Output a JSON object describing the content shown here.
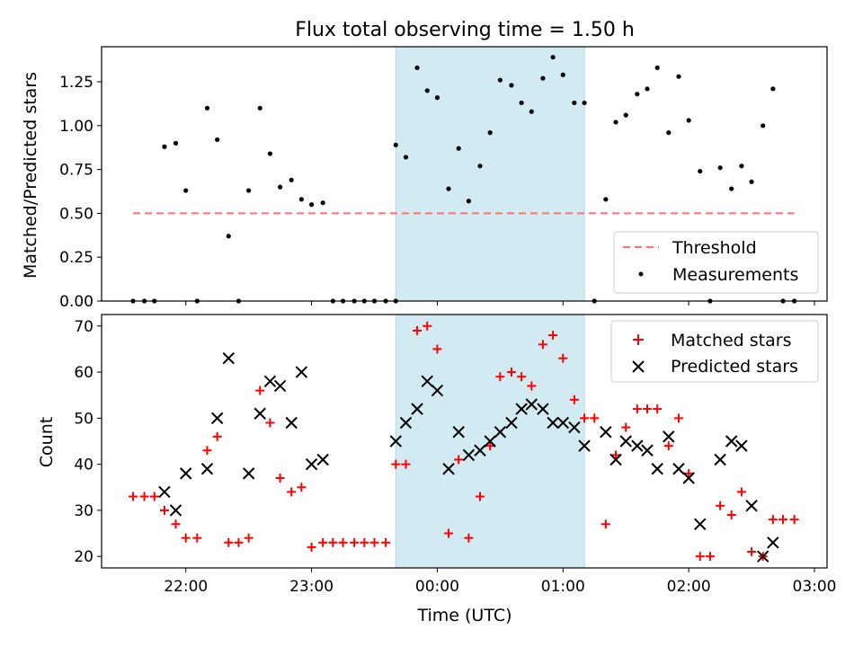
{
  "figure": {
    "title": "Flux total observing time = 1.50 h",
    "highlight_color": "#add8e6"
  },
  "chart_data": [
    {
      "type": "scatter",
      "panel": "top",
      "ylabel": "Matched/Predicted stars",
      "xlim_hours": [
        21.33,
        27.1
      ],
      "ylim": [
        0,
        1.45
      ],
      "x_ticks": [
        22,
        23,
        24,
        25,
        26,
        27
      ],
      "y_ticks": [
        0.0,
        0.25,
        0.5,
        0.75,
        1.0,
        1.25
      ],
      "y_tick_labels": [
        "0.00",
        "0.25",
        "0.50",
        "0.75",
        "1.00",
        "1.25"
      ],
      "highlight_span": [
        23.67,
        25.17
      ],
      "threshold": {
        "name": "Threshold",
        "value": 0.5,
        "x_range": [
          21.58,
          26.84
        ],
        "color": "#ff7070"
      },
      "legend": {
        "position": "lower right",
        "entries": [
          "Threshold",
          "Measurements"
        ]
      },
      "series": [
        {
          "name": "Measurements",
          "color": "#000000",
          "points": [
            [
              21.58,
              0
            ],
            [
              21.67,
              0
            ],
            [
              21.75,
              0
            ],
            [
              21.83,
              0.88
            ],
            [
              21.92,
              0.9
            ],
            [
              22.0,
              0.63
            ],
            [
              22.09,
              0
            ],
            [
              22.17,
              1.1
            ],
            [
              22.25,
              0.92
            ],
            [
              22.34,
              0.37
            ],
            [
              22.42,
              0
            ],
            [
              22.5,
              0.63
            ],
            [
              22.59,
              1.1
            ],
            [
              22.67,
              0.84
            ],
            [
              22.75,
              0.65
            ],
            [
              22.84,
              0.69
            ],
            [
              22.92,
              0.58
            ],
            [
              23.0,
              0.55
            ],
            [
              23.09,
              0.56
            ],
            [
              23.17,
              0
            ],
            [
              23.25,
              0
            ],
            [
              23.34,
              0
            ],
            [
              23.42,
              0
            ],
            [
              23.5,
              0
            ],
            [
              23.59,
              0
            ],
            [
              23.67,
              0
            ],
            [
              23.67,
              0.89
            ],
            [
              23.75,
              0.82
            ],
            [
              23.84,
              1.33
            ],
            [
              23.92,
              1.2
            ],
            [
              24.0,
              1.16
            ],
            [
              24.09,
              0.64
            ],
            [
              24.17,
              0.87
            ],
            [
              24.25,
              0.57
            ],
            [
              24.34,
              0.77
            ],
            [
              24.42,
              0.96
            ],
            [
              24.5,
              1.26
            ],
            [
              24.59,
              1.23
            ],
            [
              24.67,
              1.13
            ],
            [
              24.75,
              1.08
            ],
            [
              24.84,
              1.27
            ],
            [
              24.92,
              1.39
            ],
            [
              25.0,
              1.29
            ],
            [
              25.09,
              1.13
            ],
            [
              25.17,
              1.13
            ],
            [
              25.25,
              0
            ],
            [
              25.34,
              0.58
            ],
            [
              25.42,
              1.02
            ],
            [
              25.5,
              1.06
            ],
            [
              25.59,
              1.18
            ],
            [
              25.67,
              1.21
            ],
            [
              25.75,
              1.33
            ],
            [
              25.84,
              0.96
            ],
            [
              25.92,
              1.28
            ],
            [
              26.0,
              1.03
            ],
            [
              26.09,
              0.74
            ],
            [
              26.17,
              0
            ],
            [
              26.25,
              0.76
            ],
            [
              26.34,
              0.64
            ],
            [
              26.42,
              0.77
            ],
            [
              26.5,
              0.68
            ],
            [
              26.59,
              1.0
            ],
            [
              26.67,
              1.21
            ],
            [
              26.75,
              0
            ],
            [
              26.84,
              0
            ]
          ]
        }
      ]
    },
    {
      "type": "scatter",
      "panel": "bottom",
      "xlabel": "Time (UTC)",
      "ylabel": "Count",
      "xlim_hours": [
        21.33,
        27.1
      ],
      "ylim": [
        17.5,
        72.5
      ],
      "x_ticks": [
        22,
        23,
        24,
        25,
        26,
        27
      ],
      "x_tick_labels": [
        "22:00",
        "23:00",
        "00:00",
        "01:00",
        "02:00",
        "03:00"
      ],
      "y_ticks": [
        20,
        30,
        40,
        50,
        60,
        70
      ],
      "y_tick_labels": [
        "20",
        "30",
        "40",
        "50",
        "60",
        "70"
      ],
      "highlight_span": [
        23.67,
        25.17
      ],
      "legend": {
        "position": "upper right",
        "entries": [
          "Matched stars",
          "Predicted stars"
        ]
      },
      "series": [
        {
          "name": "Matched stars",
          "marker": "plus",
          "color": "#ff0000",
          "points": [
            [
              21.58,
              33
            ],
            [
              21.67,
              33
            ],
            [
              21.75,
              33
            ],
            [
              21.83,
              30
            ],
            [
              21.92,
              27
            ],
            [
              22.0,
              24
            ],
            [
              22.09,
              24
            ],
            [
              22.17,
              43
            ],
            [
              22.25,
              46
            ],
            [
              22.34,
              23
            ],
            [
              22.42,
              23
            ],
            [
              22.5,
              24
            ],
            [
              22.59,
              56
            ],
            [
              22.67,
              49
            ],
            [
              22.75,
              37
            ],
            [
              22.84,
              34
            ],
            [
              22.92,
              35
            ],
            [
              23.0,
              22
            ],
            [
              23.09,
              23
            ],
            [
              23.17,
              23
            ],
            [
              23.25,
              23
            ],
            [
              23.34,
              23
            ],
            [
              23.42,
              23
            ],
            [
              23.5,
              23
            ],
            [
              23.59,
              23
            ],
            [
              23.67,
              40
            ],
            [
              23.75,
              40
            ],
            [
              23.84,
              69
            ],
            [
              23.92,
              70
            ],
            [
              24.0,
              65
            ],
            [
              24.09,
              25
            ],
            [
              24.17,
              41
            ],
            [
              24.25,
              24
            ],
            [
              24.34,
              33
            ],
            [
              24.42,
              44
            ],
            [
              24.5,
              59
            ],
            [
              24.59,
              60
            ],
            [
              24.67,
              59
            ],
            [
              24.75,
              57
            ],
            [
              24.84,
              66
            ],
            [
              24.92,
              68
            ],
            [
              25.0,
              63
            ],
            [
              25.09,
              54
            ],
            [
              25.17,
              50
            ],
            [
              25.25,
              50
            ],
            [
              25.34,
              27
            ],
            [
              25.42,
              42
            ],
            [
              25.5,
              48
            ],
            [
              25.59,
              52
            ],
            [
              25.67,
              52
            ],
            [
              25.75,
              52
            ],
            [
              25.84,
              44
            ],
            [
              25.92,
              50
            ],
            [
              26.0,
              38
            ],
            [
              26.09,
              20
            ],
            [
              26.17,
              20
            ],
            [
              26.25,
              31
            ],
            [
              26.34,
              29
            ],
            [
              26.42,
              34
            ],
            [
              26.5,
              21
            ],
            [
              26.59,
              20
            ],
            [
              26.67,
              28
            ],
            [
              26.75,
              28
            ],
            [
              26.84,
              28
            ]
          ]
        },
        {
          "name": "Predicted stars",
          "marker": "x",
          "color": "#000000",
          "points": [
            [
              21.83,
              34
            ],
            [
              21.92,
              30
            ],
            [
              22.0,
              38
            ],
            [
              22.17,
              39
            ],
            [
              22.25,
              50
            ],
            [
              22.34,
              63
            ],
            [
              22.5,
              38
            ],
            [
              22.59,
              51
            ],
            [
              22.67,
              58
            ],
            [
              22.75,
              57
            ],
            [
              22.84,
              49
            ],
            [
              22.92,
              60
            ],
            [
              23.0,
              40
            ],
            [
              23.09,
              41
            ],
            [
              23.67,
              45
            ],
            [
              23.75,
              49
            ],
            [
              23.84,
              52
            ],
            [
              23.92,
              58
            ],
            [
              24.0,
              56
            ],
            [
              24.09,
              39
            ],
            [
              24.17,
              47
            ],
            [
              24.25,
              42
            ],
            [
              24.34,
              43
            ],
            [
              24.42,
              45
            ],
            [
              24.5,
              47
            ],
            [
              24.59,
              49
            ],
            [
              24.67,
              52
            ],
            [
              24.75,
              53
            ],
            [
              24.84,
              52
            ],
            [
              24.92,
              49
            ],
            [
              25.0,
              49
            ],
            [
              25.09,
              48
            ],
            [
              25.17,
              44
            ],
            [
              25.34,
              47
            ],
            [
              25.42,
              41
            ],
            [
              25.5,
              45
            ],
            [
              25.59,
              44
            ],
            [
              25.67,
              43
            ],
            [
              25.75,
              39
            ],
            [
              25.84,
              46
            ],
            [
              25.92,
              39
            ],
            [
              26.0,
              37
            ],
            [
              26.09,
              27
            ],
            [
              26.25,
              41
            ],
            [
              26.34,
              45
            ],
            [
              26.42,
              44
            ],
            [
              26.5,
              31
            ],
            [
              26.59,
              20
            ],
            [
              26.67,
              23
            ]
          ]
        }
      ]
    }
  ]
}
